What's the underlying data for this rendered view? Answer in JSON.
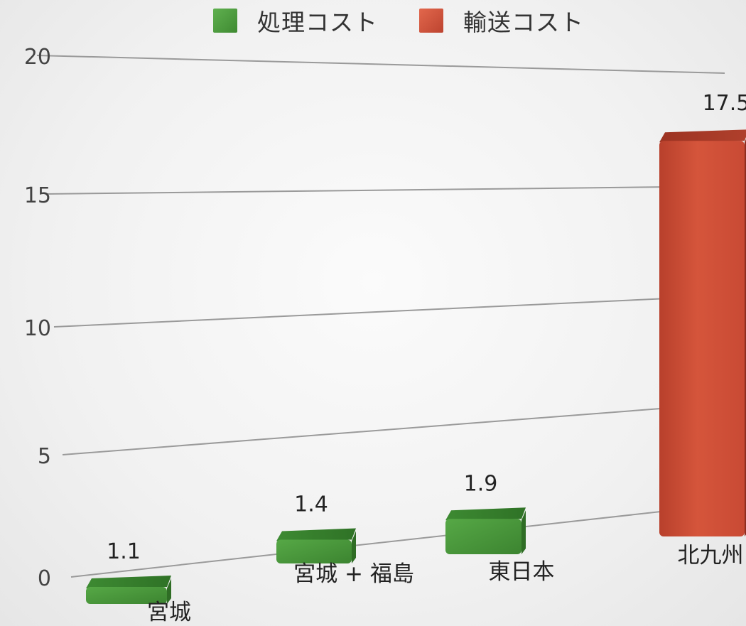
{
  "chart_data": {
    "type": "bar",
    "legend": [
      {
        "name": "処理コスト",
        "color": "#4a9a3c"
      },
      {
        "name": "輸送コスト",
        "color": "#d2533a"
      }
    ],
    "categories": [
      "宮城",
      "宮城 + 福島",
      "東日本",
      "北九州"
    ],
    "series": [
      {
        "name": "処理コスト",
        "color": "#4a9a3c",
        "values": [
          1.1,
          1.4,
          1.9,
          null
        ]
      },
      {
        "name": "輸送コスト",
        "color": "#d2533a",
        "values": [
          null,
          null,
          null,
          17.5
        ]
      }
    ],
    "data_labels": [
      "1.1",
      "1.4",
      "1.9",
      "17.5"
    ],
    "y_ticks": [
      "0",
      "5",
      "10",
      "15",
      "20"
    ],
    "ylim": [
      0,
      20
    ],
    "grid": true,
    "legend_position": "top-center",
    "title": "",
    "xlabel": "",
    "ylabel": ""
  }
}
